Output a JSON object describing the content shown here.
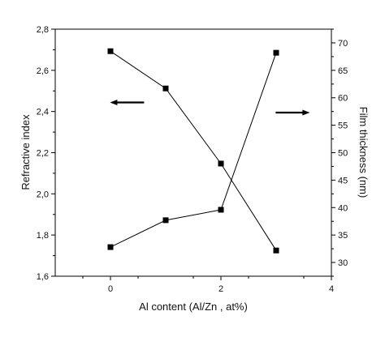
{
  "chart_data": {
    "type": "scatter",
    "title": "",
    "xlabel": "Al content (Al/Zn , at%)",
    "ylabel": "Refractive index",
    "y2label": "Film thickness (nm)",
    "xlim": [
      -1,
      4
    ],
    "ylim": [
      1.6,
      2.8
    ],
    "y2lim": [
      27.5,
      72.5
    ],
    "x_ticks": [
      0,
      2,
      4
    ],
    "y_ticks": [
      "1,6",
      "1,8",
      "2,0",
      "2,2",
      "2,4",
      "2,6",
      "2,8"
    ],
    "y2_ticks": [
      30,
      35,
      40,
      45,
      50,
      55,
      60,
      65,
      70
    ],
    "series": [
      {
        "axis": "left",
        "x": [
          0,
          1,
          2,
          3
        ],
        "y": [
          2.693,
          2.512,
          2.147,
          1.725
        ]
      },
      {
        "axis": "right",
        "x": [
          0,
          1,
          2,
          3
        ],
        "y": [
          32.8,
          37.7,
          39.6,
          68.2
        ]
      }
    ],
    "annotations": [
      {
        "type": "arrow",
        "direction": "left",
        "x": 0.3,
        "y": 2.444
      },
      {
        "type": "arrow",
        "direction": "right",
        "x": 3.3,
        "y": 57.3
      }
    ],
    "marker_color": "#000000",
    "line_color": "#000000"
  }
}
